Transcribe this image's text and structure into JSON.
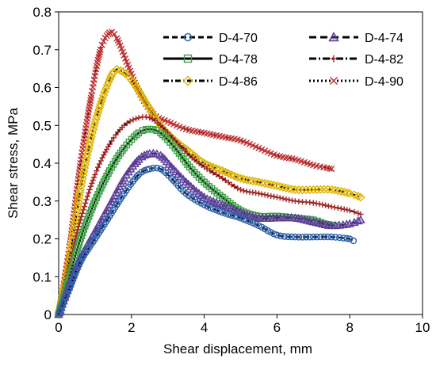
{
  "chart_data": {
    "type": "line",
    "title": "",
    "xlabel": "Shear displacement, mm",
    "ylabel": "Shear stress, MPa",
    "xlim": [
      0,
      10
    ],
    "ylim": [
      0,
      0.8
    ],
    "x_ticks": [
      "0",
      "2",
      "4",
      "6",
      "8",
      "10"
    ],
    "y_ticks": [
      "0",
      "0.1",
      "0.2",
      "0.3",
      "0.4",
      "0.5",
      "0.6",
      "0.7",
      "0.8"
    ],
    "grid": false,
    "legend_position": "top-right",
    "series": [
      {
        "name": "D-4-70",
        "color": "#2E5FA8",
        "marker": "circle",
        "points": [
          [
            0,
            0
          ],
          [
            0.3,
            0.07
          ],
          [
            0.6,
            0.14
          ],
          [
            1.0,
            0.2
          ],
          [
            1.4,
            0.26
          ],
          [
            1.8,
            0.32
          ],
          [
            2.2,
            0.37
          ],
          [
            2.5,
            0.385
          ],
          [
            2.8,
            0.385
          ],
          [
            3.1,
            0.36
          ],
          [
            3.5,
            0.32
          ],
          [
            4.0,
            0.29
          ],
          [
            4.5,
            0.27
          ],
          [
            5.0,
            0.255
          ],
          [
            5.5,
            0.235
          ],
          [
            6.0,
            0.21
          ],
          [
            6.5,
            0.205
          ],
          [
            7.0,
            0.205
          ],
          [
            7.5,
            0.205
          ],
          [
            8.0,
            0.2
          ],
          [
            8.1,
            0.195
          ]
        ]
      },
      {
        "name": "D-4-74",
        "color": "#5B3C96",
        "marker": "triangle",
        "points": [
          [
            0,
            0
          ],
          [
            0.3,
            0.08
          ],
          [
            0.6,
            0.15
          ],
          [
            1.0,
            0.22
          ],
          [
            1.4,
            0.29
          ],
          [
            1.8,
            0.36
          ],
          [
            2.2,
            0.41
          ],
          [
            2.5,
            0.425
          ],
          [
            2.8,
            0.42
          ],
          [
            3.1,
            0.39
          ],
          [
            3.5,
            0.35
          ],
          [
            4.0,
            0.31
          ],
          [
            4.5,
            0.29
          ],
          [
            5.0,
            0.27
          ],
          [
            5.5,
            0.255
          ],
          [
            6.0,
            0.255
          ],
          [
            6.5,
            0.255
          ],
          [
            7.0,
            0.245
          ],
          [
            7.5,
            0.235
          ],
          [
            8.0,
            0.24
          ],
          [
            8.3,
            0.25
          ]
        ]
      },
      {
        "name": "D-4-78",
        "color": "#3AA245",
        "marker": "square",
        "points": [
          [
            0,
            0
          ],
          [
            0.3,
            0.1
          ],
          [
            0.6,
            0.2
          ],
          [
            1.0,
            0.3
          ],
          [
            1.4,
            0.38
          ],
          [
            1.8,
            0.44
          ],
          [
            2.2,
            0.48
          ],
          [
            2.5,
            0.49
          ],
          [
            2.8,
            0.48
          ],
          [
            3.2,
            0.44
          ],
          [
            3.6,
            0.39
          ],
          [
            4.0,
            0.35
          ],
          [
            4.5,
            0.31
          ],
          [
            5.0,
            0.275
          ],
          [
            5.5,
            0.26
          ],
          [
            6.0,
            0.26
          ],
          [
            6.5,
            0.255
          ],
          [
            7.0,
            0.25
          ],
          [
            7.3,
            0.24
          ],
          [
            7.6,
            0.235
          ]
        ]
      },
      {
        "name": "D-4-82",
        "color": "#A52A2A",
        "marker": "plus",
        "points": [
          [
            0,
            0
          ],
          [
            0.3,
            0.13
          ],
          [
            0.6,
            0.25
          ],
          [
            1.0,
            0.37
          ],
          [
            1.4,
            0.45
          ],
          [
            1.8,
            0.5
          ],
          [
            2.2,
            0.52
          ],
          [
            2.5,
            0.52
          ],
          [
            2.8,
            0.5
          ],
          [
            3.2,
            0.46
          ],
          [
            3.6,
            0.42
          ],
          [
            4.0,
            0.39
          ],
          [
            4.5,
            0.36
          ],
          [
            5.0,
            0.33
          ],
          [
            5.5,
            0.32
          ],
          [
            6.0,
            0.31
          ],
          [
            6.5,
            0.3
          ],
          [
            7.0,
            0.295
          ],
          [
            7.5,
            0.285
          ],
          [
            8.0,
            0.275
          ],
          [
            8.3,
            0.265
          ]
        ]
      },
      {
        "name": "D-4-86",
        "color": "#E0B400",
        "marker": "diamond",
        "points": [
          [
            0,
            0
          ],
          [
            0.3,
            0.15
          ],
          [
            0.6,
            0.33
          ],
          [
            0.9,
            0.47
          ],
          [
            1.2,
            0.57
          ],
          [
            1.5,
            0.64
          ],
          [
            1.7,
            0.645
          ],
          [
            2.0,
            0.62
          ],
          [
            2.4,
            0.56
          ],
          [
            2.8,
            0.5
          ],
          [
            3.2,
            0.46
          ],
          [
            3.6,
            0.43
          ],
          [
            4.0,
            0.4
          ],
          [
            4.5,
            0.38
          ],
          [
            5.0,
            0.36
          ],
          [
            5.5,
            0.35
          ],
          [
            6.0,
            0.34
          ],
          [
            6.5,
            0.33
          ],
          [
            7.0,
            0.33
          ],
          [
            7.5,
            0.33
          ],
          [
            8.0,
            0.32
          ],
          [
            8.3,
            0.31
          ]
        ]
      },
      {
        "name": "D-4-90",
        "color": "#C03030",
        "marker": "x",
        "points": [
          [
            0,
            0
          ],
          [
            0.3,
            0.18
          ],
          [
            0.6,
            0.4
          ],
          [
            0.9,
            0.58
          ],
          [
            1.15,
            0.7
          ],
          [
            1.4,
            0.745
          ],
          [
            1.6,
            0.73
          ],
          [
            1.9,
            0.66
          ],
          [
            2.2,
            0.59
          ],
          [
            2.6,
            0.53
          ],
          [
            3.0,
            0.51
          ],
          [
            3.5,
            0.49
          ],
          [
            4.0,
            0.48
          ],
          [
            4.5,
            0.47
          ],
          [
            5.0,
            0.46
          ],
          [
            5.5,
            0.44
          ],
          [
            6.0,
            0.42
          ],
          [
            6.5,
            0.41
          ],
          [
            7.0,
            0.395
          ],
          [
            7.5,
            0.385
          ]
        ]
      }
    ]
  }
}
